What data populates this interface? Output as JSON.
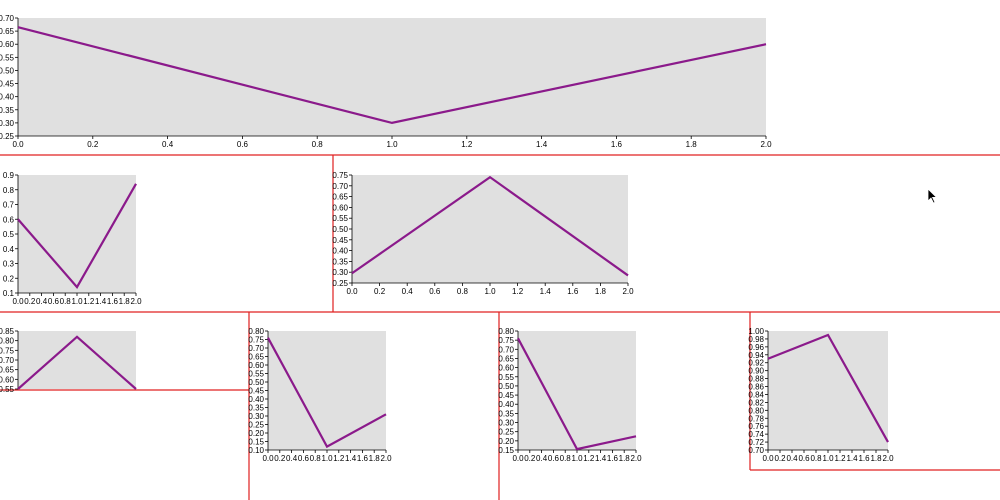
{
  "chart_data": [
    {
      "type": "line",
      "title": "",
      "xlabel": "",
      "ylabel": "",
      "x": [
        0,
        1,
        2
      ],
      "y": [
        0.665,
        0.3,
        0.6
      ],
      "xlim": [
        0,
        2
      ],
      "ylim": [
        0.25,
        0.7
      ],
      "xticks": [
        0.0,
        0.2,
        0.4,
        0.6,
        0.8,
        1.0,
        1.2,
        1.4,
        1.6,
        1.8,
        2.0
      ],
      "yticks": [
        0.25,
        0.3,
        0.35,
        0.4,
        0.45,
        0.5,
        0.55,
        0.6,
        0.65,
        0.7
      ],
      "xdec": 1,
      "ydec": 2,
      "grid": false
    },
    {
      "type": "line",
      "title": "",
      "xlabel": "",
      "ylabel": "",
      "x": [
        0,
        1,
        2
      ],
      "y": [
        0.6,
        0.14,
        0.84
      ],
      "xlim": [
        0,
        2
      ],
      "ylim": [
        0.1,
        0.9
      ],
      "xticks": [
        0.0,
        0.2,
        0.4,
        0.6,
        0.8,
        1.0,
        1.2,
        1.4,
        1.6,
        1.8,
        2.0
      ],
      "yticks": [
        0.1,
        0.2,
        0.3,
        0.4,
        0.5,
        0.6,
        0.7,
        0.8,
        0.9
      ],
      "xdec": 1,
      "ydec": 1,
      "grid": false
    },
    {
      "type": "line",
      "title": "",
      "xlabel": "",
      "ylabel": "",
      "x": [
        0,
        1,
        2
      ],
      "y": [
        0.295,
        0.74,
        0.285
      ],
      "xlim": [
        0,
        2
      ],
      "ylim": [
        0.25,
        0.75
      ],
      "xticks": [
        0.0,
        0.2,
        0.4,
        0.6,
        0.8,
        1.0,
        1.2,
        1.4,
        1.6,
        1.8,
        2.0
      ],
      "yticks": [
        0.25,
        0.3,
        0.35,
        0.4,
        0.45,
        0.5,
        0.55,
        0.6,
        0.65,
        0.7,
        0.75
      ],
      "xdec": 1,
      "ydec": 2,
      "grid": false
    },
    {
      "type": "line",
      "title": "",
      "xlabel": "",
      "ylabel": "",
      "x": [
        0,
        1,
        2
      ],
      "y": [
        0.55,
        0.82,
        0.55
      ],
      "xlim": [
        0,
        2
      ],
      "ylim": [
        0.55,
        0.85
      ],
      "xticks": [],
      "yticks": [
        0.55,
        0.6,
        0.65,
        0.7,
        0.75,
        0.8,
        0.85
      ],
      "xdec": 1,
      "ydec": 2,
      "grid": false,
      "clipped": true
    },
    {
      "type": "line",
      "title": "",
      "xlabel": "",
      "ylabel": "",
      "x": [
        0,
        1,
        2
      ],
      "y": [
        0.76,
        0.12,
        0.31
      ],
      "xlim": [
        0,
        2
      ],
      "ylim": [
        0.1,
        0.8
      ],
      "xticks": [
        0.0,
        0.2,
        0.4,
        0.6,
        0.8,
        1.0,
        1.2,
        1.4,
        1.6,
        1.8,
        2.0
      ],
      "yticks": [
        0.1,
        0.15,
        0.2,
        0.25,
        0.3,
        0.35,
        0.4,
        0.45,
        0.5,
        0.55,
        0.6,
        0.65,
        0.7,
        0.75,
        0.8
      ],
      "xdec": 1,
      "ydec": 2,
      "grid": false
    },
    {
      "type": "line",
      "title": "",
      "xlabel": "",
      "ylabel": "",
      "x": [
        0,
        1,
        2
      ],
      "y": [
        0.76,
        0.155,
        0.225
      ],
      "xlim": [
        0,
        2
      ],
      "ylim": [
        0.15,
        0.8
      ],
      "xticks": [
        0.0,
        0.2,
        0.4,
        0.6,
        0.8,
        1.0,
        1.2,
        1.4,
        1.6,
        1.8,
        2.0
      ],
      "yticks": [
        0.15,
        0.2,
        0.25,
        0.3,
        0.35,
        0.4,
        0.45,
        0.5,
        0.55,
        0.6,
        0.65,
        0.7,
        0.75,
        0.8
      ],
      "xdec": 1,
      "ydec": 2,
      "grid": false
    },
    {
      "type": "line",
      "title": "",
      "xlabel": "",
      "ylabel": "",
      "x": [
        0,
        1,
        2
      ],
      "y": [
        0.93,
        0.99,
        0.72
      ],
      "xlim": [
        0,
        2
      ],
      "ylim": [
        0.7,
        1.0
      ],
      "xticks": [
        0.0,
        0.2,
        0.4,
        0.6,
        0.8,
        1.0,
        1.2,
        1.4,
        1.6,
        1.8,
        2.0
      ],
      "yticks": [
        0.7,
        0.72,
        0.74,
        0.76,
        0.78,
        0.8,
        0.82,
        0.84,
        0.86,
        0.88,
        0.9,
        0.92,
        0.94,
        0.96,
        0.98,
        1.0
      ],
      "xdec": 1,
      "ydec": 2,
      "grid": false
    }
  ],
  "colors": {
    "line": "#8b1a8b",
    "plot_background": "#e0e0e0",
    "divider": "#e02020"
  },
  "icons": {
    "cursor": "mouse-pointer-icon"
  }
}
